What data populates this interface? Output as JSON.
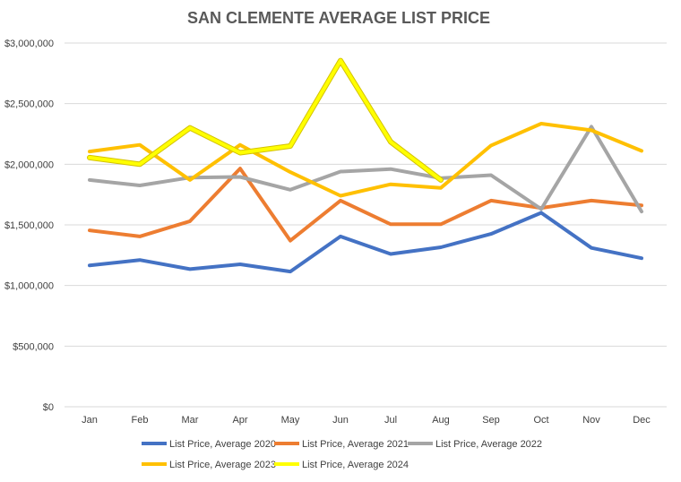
{
  "chart_data": {
    "type": "line",
    "title": "SAN CLEMENTE AVERAGE LIST PRICE",
    "xlabel": "",
    "ylabel": "",
    "categories": [
      "Jan",
      "Feb",
      "Mar",
      "Apr",
      "May",
      "Jun",
      "Jul",
      "Aug",
      "Sep",
      "Oct",
      "Nov",
      "Dec"
    ],
    "ylim": [
      0,
      3000000
    ],
    "yticks": [
      0,
      500000,
      1000000,
      1500000,
      2000000,
      2500000,
      3000000
    ],
    "ytick_labels": [
      "$0",
      "$500,000",
      "$1,000,000",
      "$1,500,000",
      "$2,000,000",
      "$2,500,000",
      "$3,000,000"
    ],
    "grid": true,
    "legend_position": "bottom",
    "series": [
      {
        "name": "List Price, Average 2020",
        "color": "#4472C4",
        "values": [
          1165000,
          1210000,
          1135000,
          1175000,
          1115000,
          1405000,
          1260000,
          1315000,
          1425000,
          1600000,
          1310000,
          1225000
        ]
      },
      {
        "name": "List Price, Average 2021",
        "color": "#ED7D31",
        "values": [
          1455000,
          1405000,
          1530000,
          1965000,
          1370000,
          1700000,
          1505000,
          1505000,
          1700000,
          1640000,
          1700000,
          1660000
        ]
      },
      {
        "name": "List Price, Average 2022",
        "color": "#A5A5A5",
        "values": [
          1870000,
          1825000,
          1890000,
          1895000,
          1790000,
          1940000,
          1960000,
          1885000,
          1910000,
          1630000,
          2310000,
          1610000
        ]
      },
      {
        "name": "List Price, Average 2023",
        "color": "#FFC000",
        "values": [
          2105000,
          2160000,
          1870000,
          2160000,
          1935000,
          1740000,
          1835000,
          1805000,
          2155000,
          2335000,
          2280000,
          2110000
        ]
      },
      {
        "name": "List Price, Average 2024",
        "color": "#FFFF00",
        "values": [
          2055000,
          2000000,
          2300000,
          2095000,
          2150000,
          2855000,
          2185000,
          1870000,
          null,
          null,
          null,
          null
        ]
      }
    ]
  }
}
